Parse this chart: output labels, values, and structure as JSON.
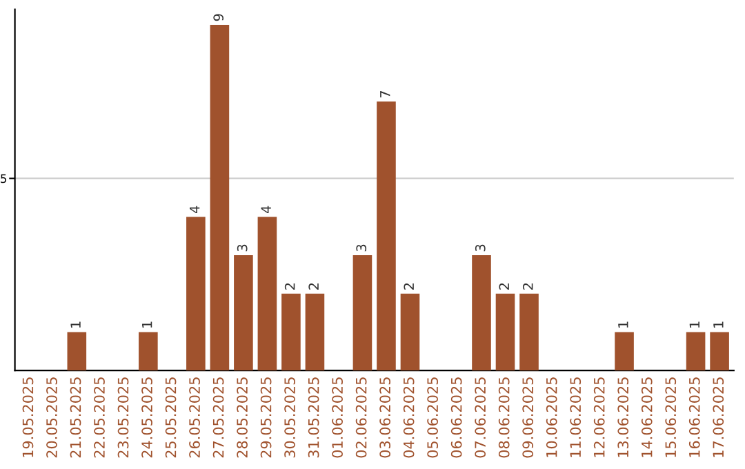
{
  "chart_data": {
    "type": "bar",
    "categories": [
      "19.05.2025",
      "20.05.2025",
      "21.05.2025",
      "22.05.2025",
      "23.05.2025",
      "24.05.2025",
      "25.05.2025",
      "26.05.2025",
      "27.05.2025",
      "28.05.2025",
      "29.05.2025",
      "30.05.2025",
      "31.05.2025",
      "01.06.2025",
      "02.06.2025",
      "03.06.2025",
      "04.06.2025",
      "05.06.2025",
      "06.06.2025",
      "07.06.2025",
      "08.06.2025",
      "09.06.2025",
      "10.06.2025",
      "11.06.2025",
      "12.06.2025",
      "13.06.2025",
      "14.06.2025",
      "15.06.2025",
      "16.06.2025",
      "17.06.2025"
    ],
    "values": [
      0,
      0,
      1,
      0,
      0,
      1,
      0,
      4,
      9,
      3,
      4,
      2,
      2,
      0,
      3,
      7,
      2,
      0,
      0,
      3,
      2,
      2,
      0,
      0,
      0,
      1,
      0,
      0,
      1,
      1
    ],
    "value_labels": [
      null,
      null,
      "1",
      null,
      null,
      "1",
      null,
      "4",
      "9",
      "3",
      "4",
      "2",
      "2",
      null,
      "3",
      "7",
      "2",
      null,
      null,
      "3",
      "2",
      "2",
      null,
      null,
      null,
      "1",
      null,
      null,
      "1",
      "1"
    ],
    "color": "#a0522d",
    "ylim": [
      0,
      9.4
    ],
    "yticks": [
      5
    ],
    "grid": "y"
  }
}
